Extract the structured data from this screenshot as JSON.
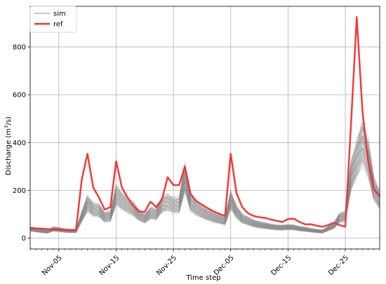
{
  "chart_data": {
    "type": "line",
    "title": "",
    "xlabel": "Time step",
    "ylabel": "Discharge (m³/s)",
    "ylabel_main": "Discharge (m",
    "ylabel_sup": "3",
    "ylabel_tail": "/s)",
    "x_labels": [
      "Nov-05",
      "Nov-15",
      "Nov-25",
      "Dec-05",
      "Dec-15",
      "Dec-25"
    ],
    "x_label_steps": [
      5,
      15,
      25,
      35,
      45,
      55
    ],
    "xlim": [
      0,
      61
    ],
    "ylim": [
      -45,
      970
    ],
    "yticks": [
      0,
      200,
      400,
      600,
      800
    ],
    "grid": true,
    "legend_position": "top-left",
    "series": [
      {
        "name": "ref",
        "color": "#ee3333",
        "values": [
          43,
          41,
          40,
          38,
          36,
          37,
          35,
          34,
          34,
          245,
          353,
          213,
          170,
          120,
          130,
          322,
          213,
          170,
          135,
          112,
          110,
          153,
          130,
          162,
          255,
          222,
          222,
          300,
          185,
          155,
          140,
          125,
          112,
          102,
          93,
          353,
          190,
          130,
          105,
          93,
          88,
          85,
          78,
          73,
          68,
          80,
          82,
          68,
          58,
          58,
          52,
          48,
          55,
          65,
          55,
          48,
          480,
          925,
          530,
          320,
          205,
          175
        ]
      },
      {
        "name": "sim",
        "color": "#888888",
        "values": [
          38,
          34,
          30,
          27,
          38,
          36,
          32,
          30,
          30,
          90,
          145,
          120,
          115,
          88,
          92,
          180,
          155,
          138,
          122,
          95,
          82,
          105,
          100,
          140,
          150,
          138,
          138,
          252,
          148,
          125,
          110,
          97,
          87,
          80,
          72,
          160,
          110,
          82,
          72,
          62,
          56,
          52,
          48,
          45,
          44,
          46,
          45,
          40,
          37,
          33,
          30,
          28,
          40,
          52,
          85,
          92,
          260,
          330,
          400,
          330,
          205,
          160
        ]
      }
    ]
  }
}
